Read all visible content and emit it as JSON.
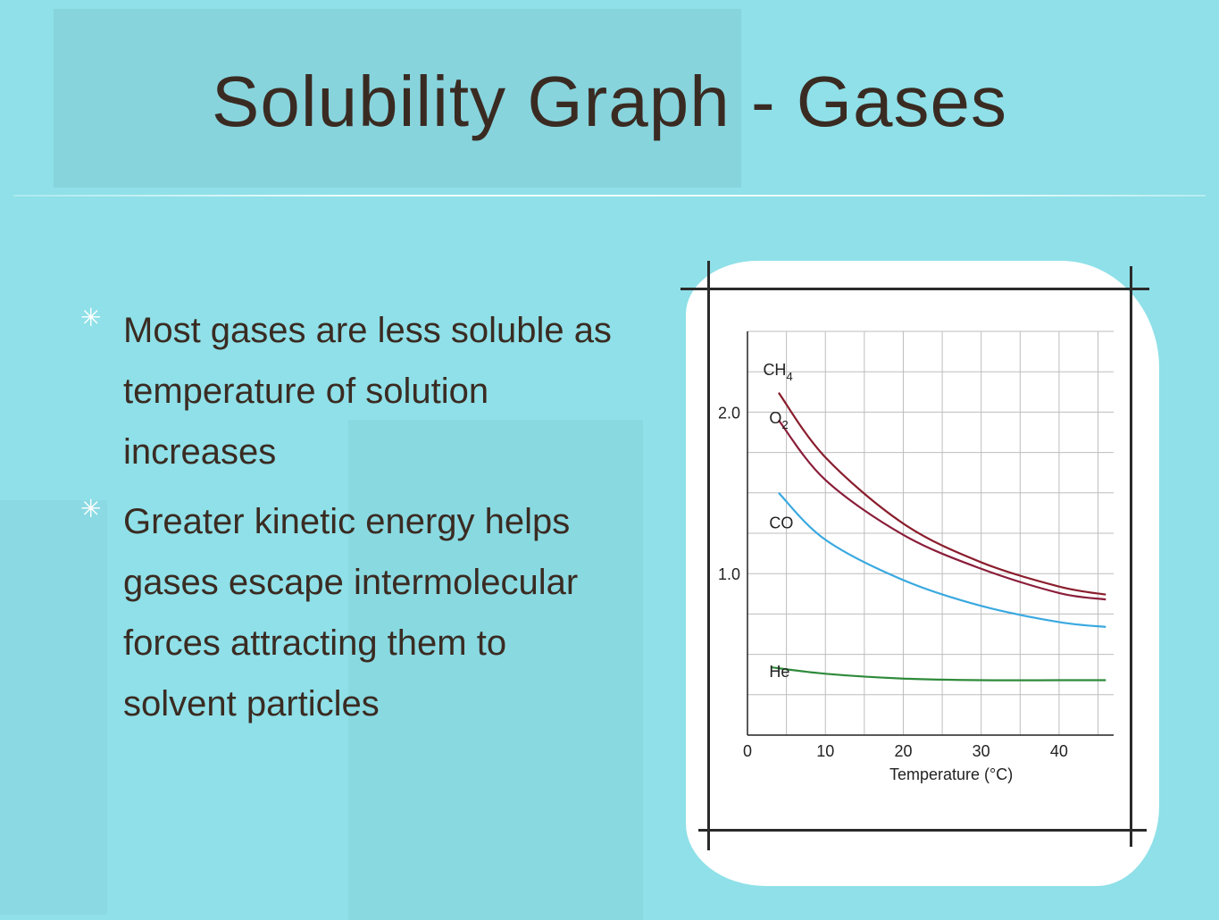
{
  "slide": {
    "title": "Solubility Graph - Gases",
    "bullets": [
      "Most  gases are less soluble as temperature of solution increases",
      "Greater kinetic energy helps gases escape intermolecular forces attracting them to solvent particles"
    ],
    "bullet_icon": "asterisk-bullet-icon"
  },
  "colors": {
    "background": "#8fe0e8",
    "title_text": "#3a2b22",
    "CH4": "#8a1d2c",
    "O2": "#8a1d3a",
    "CO": "#3aa9e0",
    "He": "#2e8a3a"
  },
  "chart_data": {
    "type": "line",
    "xlabel": "Temperature (°C)",
    "ylabel": "",
    "x_ticks": [
      0,
      10,
      20,
      30,
      40
    ],
    "y_tick_labels": [
      {
        "value": 2.0,
        "label": "2.0"
      },
      {
        "value": 1.0,
        "label": "1.0"
      }
    ],
    "xlim": [
      0,
      47
    ],
    "ylim": [
      0,
      2.5
    ],
    "grid": true,
    "series": [
      {
        "name": "CH4",
        "label_main": "CH",
        "label_sub": "4",
        "label_at": [
          2,
          2.23
        ],
        "color": "#8a1d2c",
        "x": [
          4,
          10,
          20,
          30,
          40,
          46
        ],
        "y": [
          2.12,
          1.72,
          1.31,
          1.07,
          0.92,
          0.87
        ]
      },
      {
        "name": "O2",
        "label_main": "O",
        "label_sub": "2",
        "label_at": [
          2.8,
          1.93
        ],
        "color": "#8a1d3a",
        "x": [
          4,
          10,
          20,
          30,
          40,
          46
        ],
        "y": [
          1.95,
          1.58,
          1.24,
          1.03,
          0.88,
          0.84
        ]
      },
      {
        "name": "CO",
        "label_main": "CO",
        "label_sub": "",
        "label_at": [
          2.8,
          1.28
        ],
        "color": "#3aa9e0",
        "x": [
          4,
          10,
          20,
          30,
          40,
          46
        ],
        "y": [
          1.5,
          1.21,
          0.96,
          0.8,
          0.7,
          0.67
        ]
      },
      {
        "name": "He",
        "label_main": "He",
        "label_sub": "",
        "label_at": [
          2.8,
          0.36
        ],
        "color": "#2e8a3a",
        "x": [
          3,
          10,
          20,
          30,
          40,
          46
        ],
        "y": [
          0.42,
          0.38,
          0.35,
          0.34,
          0.34,
          0.34
        ]
      }
    ]
  }
}
